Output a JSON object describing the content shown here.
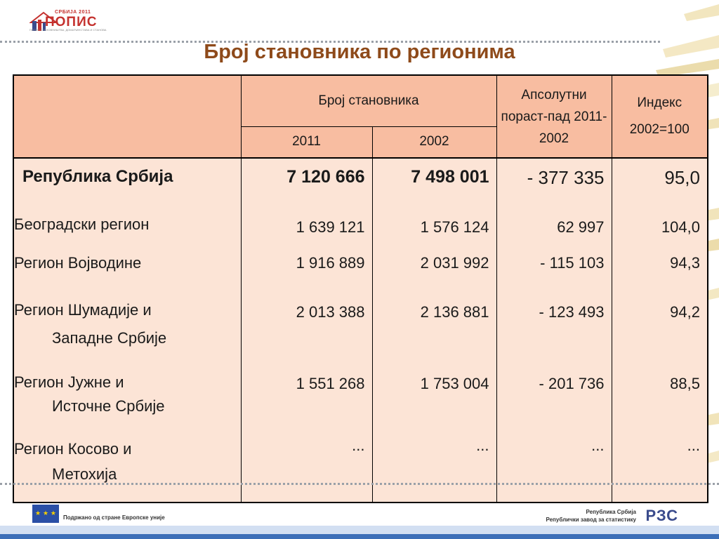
{
  "logo": {
    "top_text": "СРБИЈА 2011",
    "main_text": "ПОПИС",
    "tagline": "ПОПИС СТАНОВНИШТВА, ДОМАЋИНСТАВА И СТАНОВА"
  },
  "title": "Број становника по регионима",
  "table": {
    "header": {
      "population_label": "Број становника",
      "year_2011": "2011",
      "year_2002": "2002",
      "change_label": "Апсолутни пораст-пад 2011-2002",
      "index_label_1": "Индекс",
      "index_label_2": "2002=100"
    },
    "total": {
      "name": "Република Србија",
      "y2011": "7 120 666",
      "y2002": "7 498 001",
      "change": "- 377 335",
      "index": "95,0"
    },
    "regions": [
      {
        "name_1": "Београдски регион",
        "name_2": "",
        "y2011": "1 639 121",
        "y2002": "1 576 124",
        "change": "62 997",
        "index": "104,0"
      },
      {
        "name_1": "Регион Војводине",
        "name_2": "",
        "y2011": "1 916 889",
        "y2002": "2 031 992",
        "change": "- 115 103",
        "index": "94,3"
      },
      {
        "name_1": "Регион Шумадије и",
        "name_2": "Западне Србије",
        "y2011": "2 013 388",
        "y2002": "2 136 881",
        "change": "- 123 493",
        "index": "94,2"
      },
      {
        "name_1": "Регион Јужне и",
        "name_2": "Источне Србије",
        "y2011": "1 551 268",
        "y2002": "1 753 004",
        "change": "- 201 736",
        "index": "88,5"
      },
      {
        "name_1": "Регион Косово и",
        "name_2": "Метохија",
        "y2011": "...",
        "y2002": "...",
        "change": "...",
        "index": "..."
      }
    ]
  },
  "footer": {
    "eu_text": "Подржано од стране Европске уније",
    "rzs_line1": "Република Србија",
    "rzs_line2": "Републички завод за статистику",
    "rzs_logo": "РЗС"
  },
  "colors": {
    "header_fill": "#f8bda1",
    "body_fill": "#fce4d6",
    "title": "#8e4a1a",
    "logo_red": "#c4312e"
  }
}
